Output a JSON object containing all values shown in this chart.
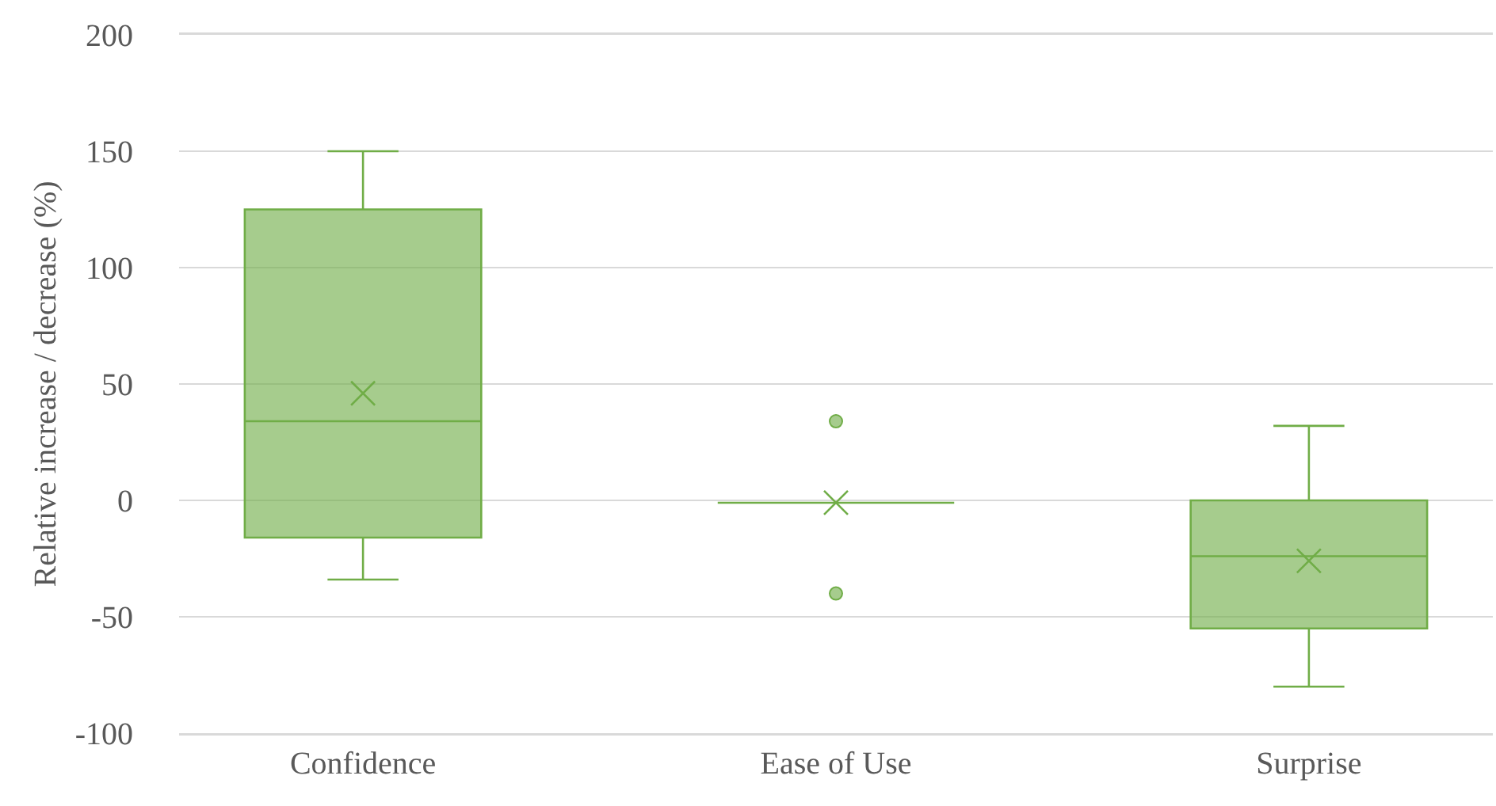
{
  "chart_data": {
    "type": "box",
    "ylabel": "Relative increase / decrease (%)",
    "categories": [
      "Confidence",
      "Ease of Use",
      "Surprise"
    ],
    "color": "#70ad47",
    "boxes": [
      {
        "low": -34,
        "q1": -16,
        "median": 34,
        "q3": 125,
        "high": 150,
        "mean": 46
      },
      {
        "low": -1,
        "q1": -1,
        "median": -1,
        "q3": -1,
        "high": -1,
        "mean": -1,
        "outliers": [
          34,
          -40
        ]
      },
      {
        "low": -80,
        "q1": -55,
        "median": -24,
        "q3": 0,
        "high": 32,
        "mean": -26
      }
    ],
    "ylim": [
      -100,
      200
    ],
    "yticks": [
      -100,
      -50,
      0,
      50,
      100,
      150,
      200
    ],
    "grid": "y"
  }
}
